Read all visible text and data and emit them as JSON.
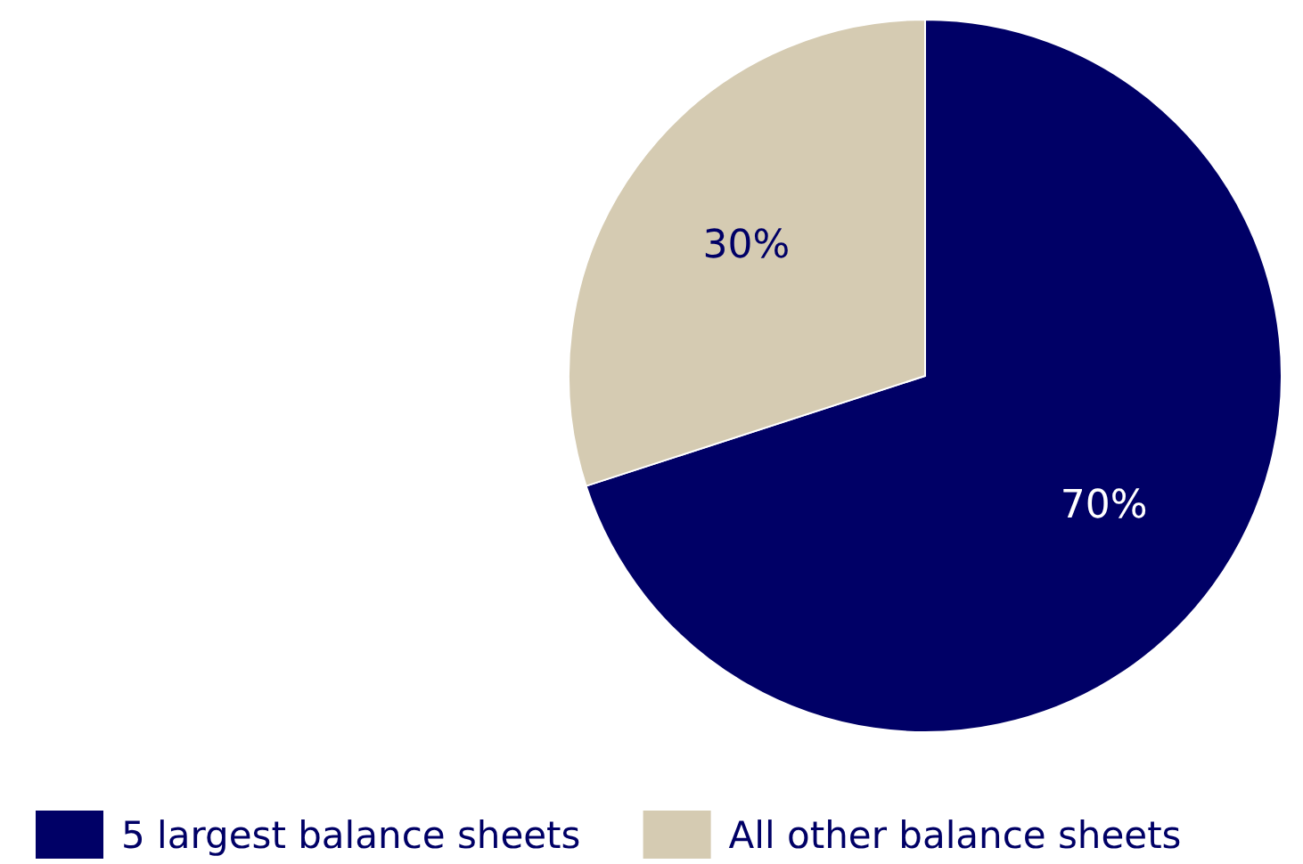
{
  "chart_data": {
    "type": "pie",
    "categories": [
      "5 largest balance sheets",
      "All other balance sheets"
    ],
    "values": [
      70,
      30
    ],
    "colors": [
      "#000066",
      "#d5cbb2"
    ],
    "value_labels": [
      "70%",
      "30%"
    ],
    "legend": "bottom"
  }
}
